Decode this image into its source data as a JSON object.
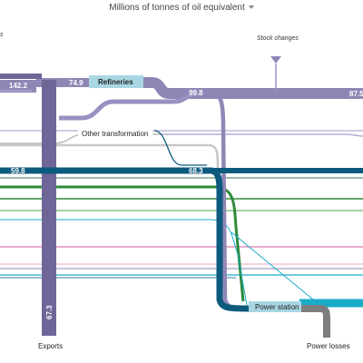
{
  "header": {
    "title": "Millions of tonnes of oil equivalent"
  },
  "top_left_fragment": "s",
  "nodes": {
    "refineries": "Refineries",
    "other_transformation": "Other transformation",
    "power_station": "Power station",
    "exports": "Exports",
    "power_losses": "Power losses",
    "stock_changes": "Stock  changes"
  },
  "values": {
    "v142": "142.2",
    "v749": "74.9",
    "v998": "99.8",
    "v875": "87.5",
    "v598": "59.8",
    "v683": "68.3",
    "v673": "67.3"
  },
  "colors": {
    "oil": "#8f86b5",
    "oil_dark": "#6f6698",
    "gas": "#0d5a7e",
    "coal": "#2e8a3a",
    "electricity": "#1aabc9",
    "losses": "#7d7d7d",
    "grey_flow": "#b8b8b8",
    "refinery_box": "#a9d6e3",
    "power_box": "#a9d6e3"
  }
}
